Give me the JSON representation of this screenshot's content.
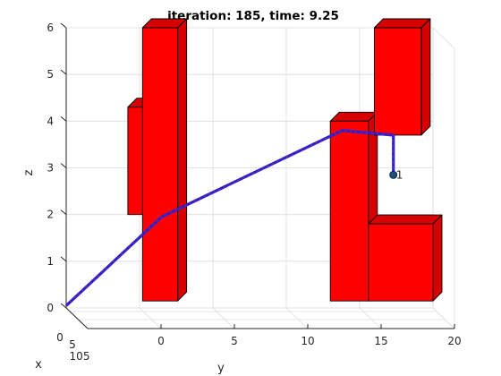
{
  "chart_data": {
    "type": "line",
    "title": "iteration: 185, time: 9.25",
    "xlabel": "x",
    "ylabel": "y",
    "zlabel": "z",
    "z_ticks": [
      "0",
      "1",
      "2",
      "3",
      "4",
      "5",
      "6"
    ],
    "y_ticks": [
      "0",
      "5",
      "10",
      "15",
      "20"
    ],
    "x_ticks": [
      "0",
      "5",
      "105"
    ],
    "ylim": [
      -5,
      20
    ],
    "zlim": [
      0,
      6
    ],
    "grid": true,
    "path_color": "#2b1fd6",
    "path_core_color": "#b8283a",
    "obstacle_color": "#ff0000",
    "series": [
      {
        "values_yz": [
          [
            -5,
            0.05
          ],
          [
            1.5,
            1.95
          ],
          [
            13.8,
            3.8
          ],
          [
            17.3,
            3.7
          ],
          [
            17.3,
            2.85
          ]
        ]
      }
    ],
    "obstacles": [
      {
        "y": [
          -0.8,
          0.3
        ],
        "z": [
          2.0,
          4.3
        ]
      },
      {
        "y": [
          0.2,
          2.6
        ],
        "z": [
          0.15,
          6.0
        ]
      },
      {
        "y": [
          13.0,
          15.6
        ],
        "z": [
          0.15,
          4.0
        ]
      },
      {
        "y": [
          15.6,
          20.0
        ],
        "z": [
          0.15,
          1.8
        ]
      },
      {
        "y": [
          16.0,
          19.2
        ],
        "z": [
          3.7,
          6.0
        ]
      }
    ],
    "marker_label": "1"
  }
}
